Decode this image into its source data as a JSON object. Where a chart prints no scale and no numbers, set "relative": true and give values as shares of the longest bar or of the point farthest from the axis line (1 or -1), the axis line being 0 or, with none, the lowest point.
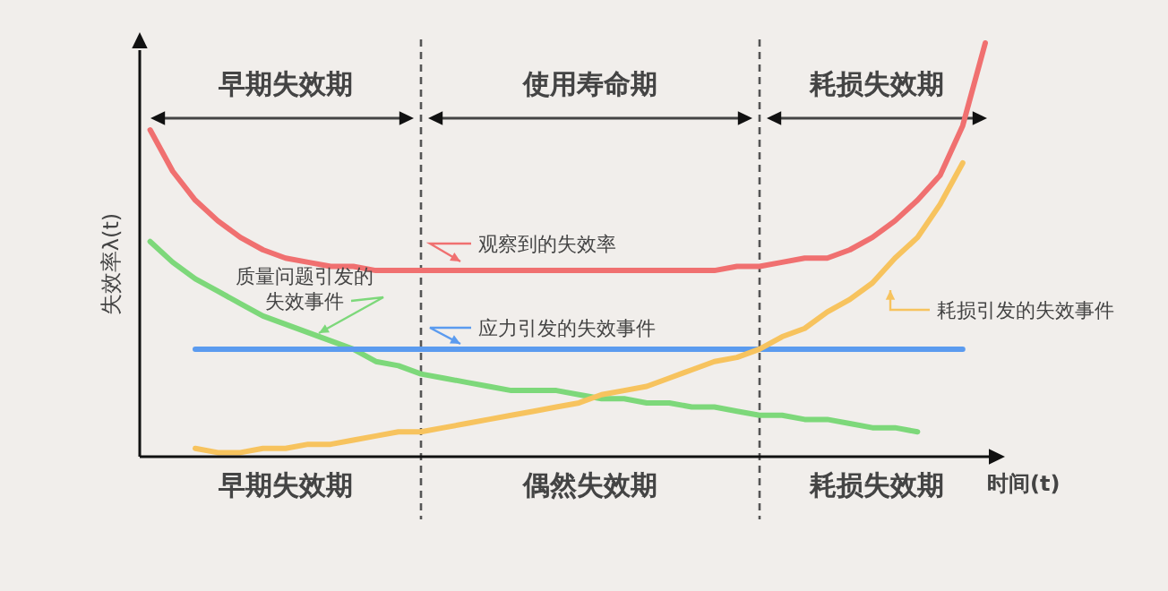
{
  "chart_data": {
    "type": "line",
    "relative": true,
    "legend": "center",
    "xlabel": "时间(t)",
    "ylabel": "失效率λ(t)",
    "categories": [
      null,
      null,
      null,
      null,
      null,
      null,
      null,
      null,
      null,
      null,
      null,
      null,
      null,
      null,
      null,
      null,
      null,
      null,
      null,
      null,
      null,
      null,
      null,
      null,
      null,
      null,
      null,
      null,
      null,
      null,
      null,
      null,
      null,
      null,
      null,
      null,
      null,
      null
    ],
    "series": [
      {
        "name": "观察到的失效率",
        "color": "#f07070",
        "values": [
          0.79,
          0.69,
          0.62,
          0.57,
          0.53,
          0.5,
          0.48,
          0.47,
          0.46,
          0.46,
          0.45,
          0.45,
          0.45,
          0.45,
          0.45,
          0.45,
          0.45,
          0.45,
          0.45,
          0.45,
          0.45,
          0.45,
          0.45,
          0.45,
          0.45,
          0.45,
          0.46,
          0.46,
          0.47,
          0.48,
          0.48,
          0.5,
          0.53,
          0.57,
          0.62,
          0.68,
          0.8,
          1
        ]
      },
      {
        "name": "质量问题引发的失效事件",
        "color": "#7dd87a",
        "values": [
          0.52,
          0.47,
          0.43,
          0.4,
          0.37,
          0.34,
          0.32,
          0.3,
          0.28,
          0.26,
          0.23,
          0.22,
          0.2,
          0.19,
          0.18,
          0.17,
          0.16,
          0.16,
          0.16,
          0.15,
          0.14,
          0.14,
          0.13,
          0.13,
          0.12,
          0.12,
          0.11,
          0.1,
          0.1,
          0.09,
          0.09,
          0.08,
          0.07,
          0.07,
          0.06,
          null,
          null,
          null
        ]
      },
      {
        "name": "应力引发的失效事件",
        "color": "#5b9bef",
        "values": [
          null,
          null,
          0.26,
          0.26,
          0.26,
          0.26,
          0.26,
          0.26,
          0.26,
          0.26,
          0.26,
          0.26,
          0.26,
          0.26,
          0.26,
          0.26,
          0.26,
          0.26,
          0.26,
          0.26,
          0.26,
          0.26,
          0.26,
          0.26,
          0.26,
          0.26,
          0.26,
          0.26,
          0.26,
          0.26,
          0.26,
          0.26,
          0.26,
          0.26,
          0.26,
          0.26,
          0.26,
          null
        ]
      },
      {
        "name": "耗损引发的失效事件",
        "color": "#f7c35e",
        "values": [
          null,
          null,
          0.02,
          0.01,
          0.01,
          0.02,
          0.02,
          0.03,
          0.03,
          0.04,
          0.05,
          0.06,
          0.06,
          0.07,
          0.08,
          0.09,
          0.1,
          0.11,
          0.12,
          0.13,
          0.15,
          0.16,
          0.17,
          0.19,
          0.21,
          0.23,
          0.24,
          0.26,
          0.29,
          0.31,
          0.35,
          0.38,
          0.42,
          0.48,
          0.53,
          0.61,
          0.71,
          null
        ]
      }
    ],
    "annotations": [
      "早期失效期",
      "使用寿命期",
      "耗损失效期",
      "早期失效期",
      "偶然失效期",
      "耗损失效期"
    ]
  }
}
